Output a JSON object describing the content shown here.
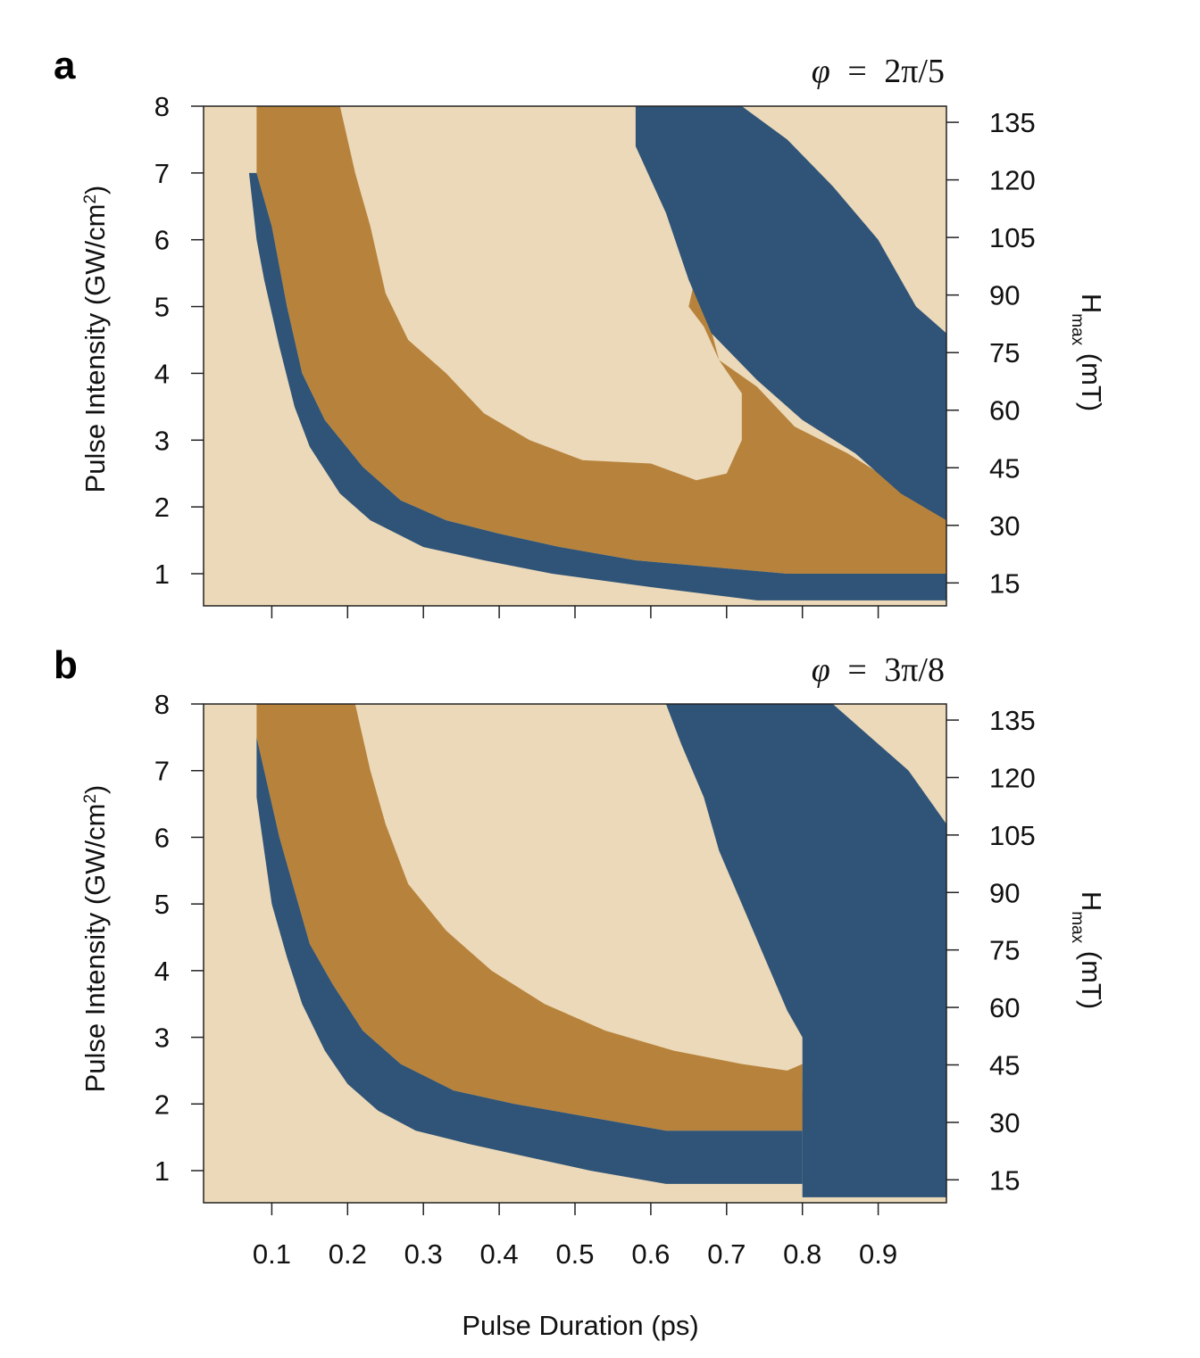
{
  "colors": {
    "region_none": "#ecd9b9",
    "region_orange": "#b7833c",
    "region_blue": "#2f5478",
    "axis": "#222222"
  },
  "chart_data": [
    {
      "panel": "a",
      "type": "heatmap",
      "phase_label": {
        "symbol": "φ",
        "relation": "=",
        "value": "2π/5"
      },
      "ylabel": "Pulse Intensity (GW/cm²)",
      "ylabel_main": "Pulse Intensity (GW/cm",
      "ylabel_sup": "2",
      "ylabel_close": ")",
      "y2label_main": "H",
      "y2label_sub": "max",
      "y2label_unit": " (mT)",
      "xlim": [
        0.01,
        0.99
      ],
      "ylim": [
        0.5,
        8.0
      ],
      "x_ticks": [
        0.1,
        0.2,
        0.3,
        0.4,
        0.5,
        0.6,
        0.7,
        0.8,
        0.9
      ],
      "y_ticks": [
        1,
        2,
        3,
        4,
        5,
        6,
        7,
        8
      ],
      "y_tick_labels": [
        "1",
        "2",
        "3",
        "4",
        "5",
        "6",
        "7",
        "8"
      ],
      "y2_ticks": [
        15,
        30,
        45,
        60,
        75,
        90,
        105,
        120,
        135
      ],
      "y2_tick_labels": [
        "15",
        "30",
        "45",
        "60",
        "75",
        "90",
        "105",
        "120",
        "135"
      ],
      "y2_per_y": 17.4,
      "regions": {
        "orange_band": [
          [
            0.08,
            8.0
          ],
          [
            0.19,
            8.0
          ],
          [
            0.21,
            7.0
          ],
          [
            0.23,
            6.2
          ],
          [
            0.25,
            5.2
          ],
          [
            0.28,
            4.5
          ],
          [
            0.33,
            4.0
          ],
          [
            0.38,
            3.4
          ],
          [
            0.44,
            3.0
          ],
          [
            0.51,
            2.7
          ],
          [
            0.6,
            2.65
          ],
          [
            0.66,
            2.4
          ],
          [
            0.7,
            2.5
          ],
          [
            0.72,
            3.0
          ],
          [
            0.72,
            3.7
          ],
          [
            0.69,
            4.2
          ],
          [
            0.66,
            5.5
          ],
          [
            0.65,
            5.0
          ],
          [
            0.67,
            4.7
          ],
          [
            0.69,
            4.2
          ],
          [
            0.74,
            3.8
          ],
          [
            0.79,
            3.2
          ],
          [
            0.86,
            2.8
          ],
          [
            0.93,
            2.3
          ],
          [
            0.99,
            1.9
          ],
          [
            0.99,
            1.0
          ],
          [
            0.78,
            1.0
          ],
          [
            0.58,
            1.2
          ],
          [
            0.48,
            1.4
          ],
          [
            0.4,
            1.6
          ],
          [
            0.33,
            1.8
          ],
          [
            0.27,
            2.1
          ],
          [
            0.22,
            2.6
          ],
          [
            0.17,
            3.3
          ],
          [
            0.14,
            4.0
          ],
          [
            0.12,
            5.0
          ],
          [
            0.1,
            6.2
          ],
          [
            0.08,
            7.0
          ]
        ],
        "blue_hook": [
          [
            0.08,
            7.0
          ],
          [
            0.1,
            6.2
          ],
          [
            0.12,
            5.0
          ],
          [
            0.14,
            4.0
          ],
          [
            0.17,
            3.3
          ],
          [
            0.22,
            2.6
          ],
          [
            0.27,
            2.1
          ],
          [
            0.33,
            1.8
          ],
          [
            0.4,
            1.6
          ],
          [
            0.48,
            1.4
          ],
          [
            0.58,
            1.2
          ],
          [
            0.78,
            1.0
          ],
          [
            0.99,
            1.0
          ],
          [
            0.99,
            0.6
          ],
          [
            0.74,
            0.6
          ],
          [
            0.6,
            0.8
          ],
          [
            0.47,
            1.0
          ],
          [
            0.38,
            1.2
          ],
          [
            0.3,
            1.4
          ],
          [
            0.23,
            1.8
          ],
          [
            0.19,
            2.2
          ],
          [
            0.15,
            2.9
          ],
          [
            0.13,
            3.5
          ],
          [
            0.11,
            4.4
          ],
          [
            0.09,
            5.4
          ],
          [
            0.08,
            6.0
          ],
          [
            0.07,
            7.0
          ]
        ],
        "blue_upper": [
          [
            0.58,
            8.0
          ],
          [
            0.72,
            8.0
          ],
          [
            0.78,
            7.5
          ],
          [
            0.84,
            6.8
          ],
          [
            0.9,
            6.0
          ],
          [
            0.95,
            5.0
          ],
          [
            0.99,
            4.6
          ],
          [
            0.99,
            1.8
          ],
          [
            0.93,
            2.2
          ],
          [
            0.87,
            2.8
          ],
          [
            0.8,
            3.3
          ],
          [
            0.74,
            3.9
          ],
          [
            0.68,
            4.6
          ],
          [
            0.65,
            5.4
          ],
          [
            0.62,
            6.4
          ],
          [
            0.58,
            7.4
          ]
        ]
      }
    },
    {
      "panel": "b",
      "type": "heatmap",
      "phase_label": {
        "symbol": "φ",
        "relation": "=",
        "value": "3π/8"
      },
      "ylabel": "Pulse Intensity (GW/cm²)",
      "ylabel_main": "Pulse Intensity (GW/cm",
      "ylabel_sup": "2",
      "ylabel_close": ")",
      "y2label_main": "H",
      "y2label_sub": "max",
      "y2label_unit": " (mT)",
      "xlabel": "Pulse Duration (ps)",
      "xlim": [
        0.01,
        0.99
      ],
      "ylim": [
        0.5,
        8.0
      ],
      "x_ticks": [
        0.1,
        0.2,
        0.3,
        0.4,
        0.5,
        0.6,
        0.7,
        0.8,
        0.9
      ],
      "x_tick_labels": [
        "0.1",
        "0.2",
        "0.3",
        "0.4",
        "0.5",
        "0.6",
        "0.7",
        "0.8",
        "0.9"
      ],
      "y_ticks": [
        1,
        2,
        3,
        4,
        5,
        6,
        7,
        8
      ],
      "y_tick_labels": [
        "1",
        "2",
        "3",
        "4",
        "5",
        "6",
        "7",
        "8"
      ],
      "y2_ticks": [
        15,
        30,
        45,
        60,
        75,
        90,
        105,
        120,
        135
      ],
      "y2_tick_labels": [
        "15",
        "30",
        "45",
        "60",
        "75",
        "90",
        "105",
        "120",
        "135"
      ],
      "y2_per_y": 17.4,
      "regions": {
        "orange_band": [
          [
            0.08,
            8.0
          ],
          [
            0.21,
            8.0
          ],
          [
            0.23,
            7.0
          ],
          [
            0.25,
            6.2
          ],
          [
            0.28,
            5.3
          ],
          [
            0.33,
            4.6
          ],
          [
            0.39,
            4.0
          ],
          [
            0.46,
            3.5
          ],
          [
            0.54,
            3.1
          ],
          [
            0.63,
            2.8
          ],
          [
            0.72,
            2.6
          ],
          [
            0.78,
            2.5
          ],
          [
            0.8,
            2.6
          ],
          [
            0.8,
            2.2
          ],
          [
            0.82,
            1.8
          ],
          [
            0.8,
            1.6
          ],
          [
            0.62,
            1.6
          ],
          [
            0.52,
            1.8
          ],
          [
            0.42,
            2.0
          ],
          [
            0.34,
            2.2
          ],
          [
            0.27,
            2.6
          ],
          [
            0.22,
            3.1
          ],
          [
            0.18,
            3.8
          ],
          [
            0.15,
            4.4
          ],
          [
            0.13,
            5.2
          ],
          [
            0.11,
            6.0
          ],
          [
            0.09,
            7.0
          ],
          [
            0.08,
            7.5
          ]
        ],
        "blue_hook": [
          [
            0.08,
            7.5
          ],
          [
            0.09,
            7.0
          ],
          [
            0.11,
            6.0
          ],
          [
            0.13,
            5.2
          ],
          [
            0.15,
            4.4
          ],
          [
            0.18,
            3.8
          ],
          [
            0.22,
            3.1
          ],
          [
            0.27,
            2.6
          ],
          [
            0.34,
            2.2
          ],
          [
            0.42,
            2.0
          ],
          [
            0.52,
            1.8
          ],
          [
            0.62,
            1.6
          ],
          [
            0.8,
            1.6
          ],
          [
            0.8,
            0.8
          ],
          [
            0.62,
            0.8
          ],
          [
            0.52,
            1.0
          ],
          [
            0.44,
            1.2
          ],
          [
            0.36,
            1.4
          ],
          [
            0.29,
            1.6
          ],
          [
            0.24,
            1.9
          ],
          [
            0.2,
            2.3
          ],
          [
            0.17,
            2.8
          ],
          [
            0.14,
            3.5
          ],
          [
            0.12,
            4.2
          ],
          [
            0.1,
            5.0
          ],
          [
            0.09,
            5.8
          ],
          [
            0.08,
            6.6
          ]
        ],
        "blue_upper": [
          [
            0.62,
            8.0
          ],
          [
            0.84,
            8.0
          ],
          [
            0.88,
            7.6
          ],
          [
            0.94,
            7.0
          ],
          [
            0.99,
            6.2
          ],
          [
            0.99,
            0.6
          ],
          [
            0.8,
            0.6
          ],
          [
            0.8,
            2.5
          ],
          [
            0.8,
            3.0
          ],
          [
            0.78,
            3.4
          ],
          [
            0.75,
            4.2
          ],
          [
            0.72,
            5.0
          ],
          [
            0.69,
            5.8
          ],
          [
            0.67,
            6.6
          ],
          [
            0.64,
            7.4
          ]
        ]
      }
    }
  ]
}
